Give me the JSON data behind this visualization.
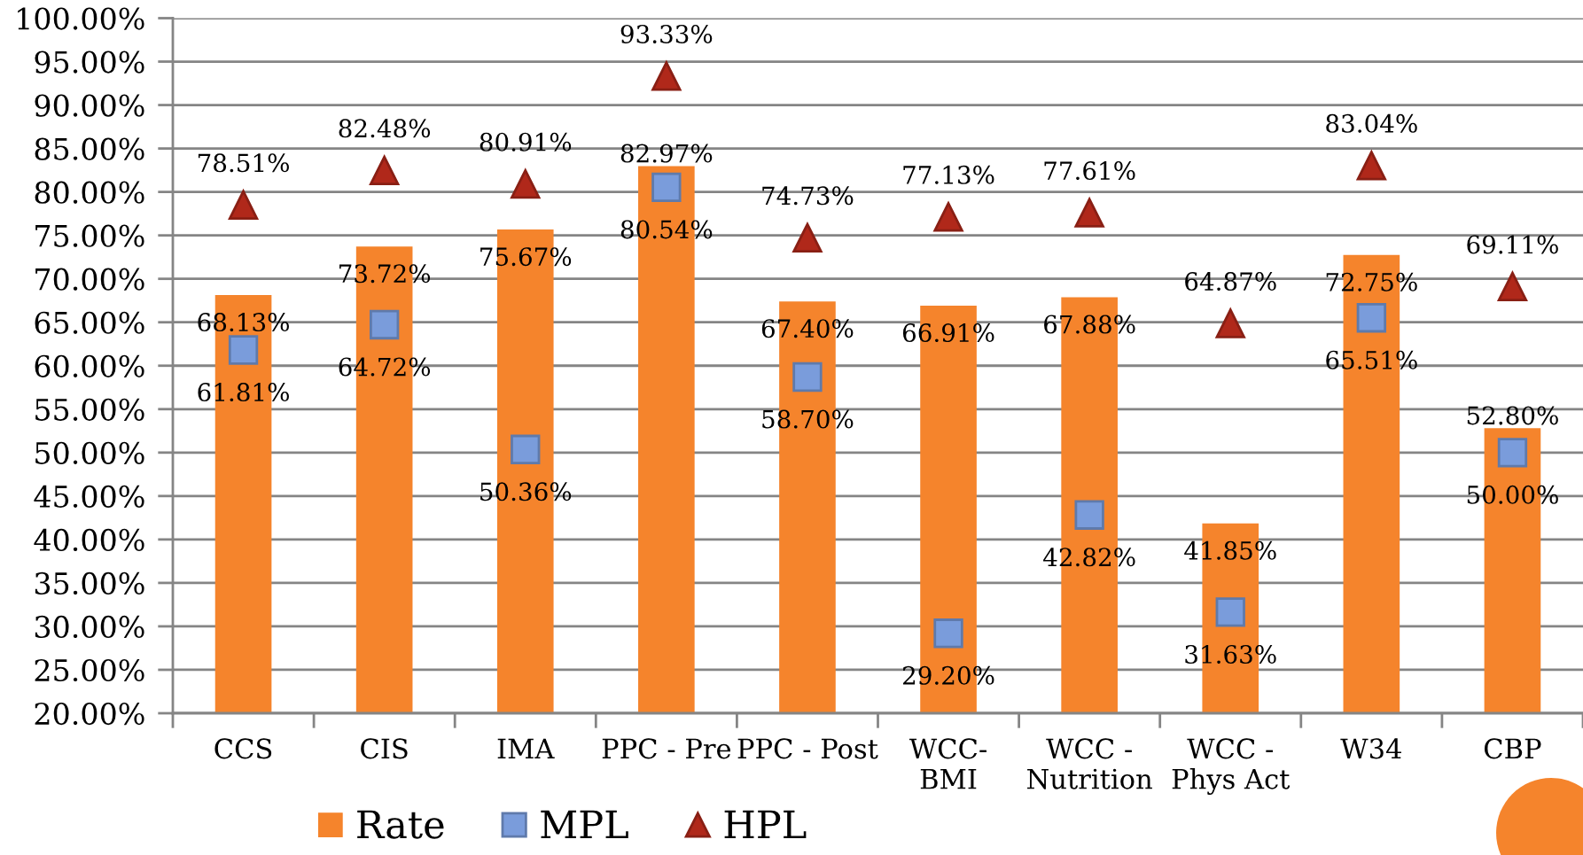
{
  "chart_data": {
    "type": "bar",
    "categories": [
      "CCS",
      "CIS",
      "IMA",
      "PPC - Pre",
      "PPC - Post",
      "WCC-\nBMI",
      "WCC -\nNutrition",
      "WCC -\nPhys Act",
      "W34",
      "CBP"
    ],
    "series": [
      {
        "name": "Rate",
        "color": "#f5842c",
        "values": [
          68.13,
          73.72,
          75.67,
          82.97,
          67.4,
          66.91,
          67.88,
          41.85,
          72.75,
          52.8
        ],
        "value_labels": [
          "68.13%",
          "73.72%",
          "75.67%",
          "82.97%",
          "67.40%",
          "66.91%",
          "67.88%",
          "41.85%",
          "72.75%",
          "52.80%"
        ]
      },
      {
        "name": "MPL",
        "type": "scatter",
        "marker": "square",
        "color": "#7a9cdb",
        "values": [
          61.81,
          64.72,
          50.36,
          80.54,
          58.7,
          29.2,
          42.82,
          31.63,
          65.51,
          50.0
        ],
        "value_labels": [
          "61.81%",
          "64.72%",
          "50.36%",
          "80.54%",
          "58.70%",
          "29.20%",
          "42.82%",
          "31.63%",
          "65.51%",
          "50.00%"
        ]
      },
      {
        "name": "HPL",
        "type": "scatter",
        "marker": "triangle",
        "color": "#b0281a",
        "values": [
          78.51,
          82.48,
          80.91,
          93.33,
          74.73,
          77.13,
          77.61,
          64.87,
          83.04,
          69.11
        ],
        "value_labels": [
          "78.51%",
          "82.48%",
          "80.91%",
          "93.33%",
          "74.73%",
          "77.13%",
          "77.61%",
          "64.87%",
          "83.04%",
          "69.11%"
        ]
      }
    ],
    "ylim": [
      20,
      100
    ],
    "yticks": [
      {
        "value": 20,
        "label": "20.00%"
      },
      {
        "value": 25,
        "label": "25.00%"
      },
      {
        "value": 30,
        "label": "30.00%"
      },
      {
        "value": 35,
        "label": "35.00%"
      },
      {
        "value": 40,
        "label": "40.00%"
      },
      {
        "value": 45,
        "label": "45.00%"
      },
      {
        "value": 50,
        "label": "50.00%"
      },
      {
        "value": 55,
        "label": "55.00%"
      },
      {
        "value": 60,
        "label": "60.00%"
      },
      {
        "value": 65,
        "label": "65.00%"
      },
      {
        "value": 70,
        "label": "70.00%"
      },
      {
        "value": 75,
        "label": "75.00%"
      },
      {
        "value": 80,
        "label": "80.00%"
      },
      {
        "value": 85,
        "label": "85.00%"
      },
      {
        "value": 90,
        "label": "90.00%"
      },
      {
        "value": 95,
        "label": "95.00%"
      },
      {
        "value": 100,
        "label": "100.00%"
      }
    ],
    "grid": "y",
    "legend": "bottom"
  }
}
